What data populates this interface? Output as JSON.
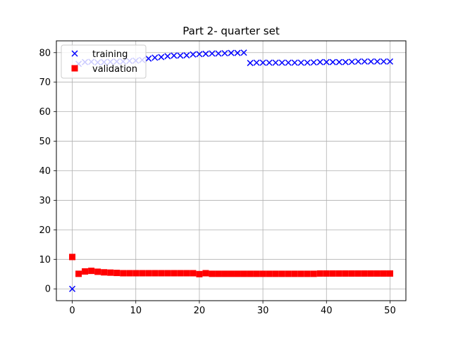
{
  "chart_data": {
    "type": "scatter",
    "title": "Part 2- quarter set",
    "xlabel": "",
    "ylabel": "",
    "xlim": [
      -2.5,
      52.5
    ],
    "ylim": [
      -4,
      84
    ],
    "grid": true,
    "legend_position": "top-left",
    "x_ticks": [
      0,
      10,
      20,
      30,
      40,
      50
    ],
    "y_ticks": [
      0,
      10,
      20,
      30,
      40,
      50,
      60,
      70,
      80
    ],
    "series": [
      {
        "name": "training",
        "marker": "x",
        "color": "#0000ff",
        "x": [
          0,
          1,
          2,
          3,
          4,
          5,
          6,
          7,
          8,
          9,
          10,
          11,
          12,
          13,
          14,
          15,
          16,
          17,
          18,
          19,
          20,
          21,
          22,
          23,
          24,
          25,
          26,
          27,
          28,
          29,
          30,
          31,
          32,
          33,
          34,
          35,
          36,
          37,
          38,
          39,
          40,
          41,
          42,
          43,
          44,
          45,
          46,
          47,
          48,
          49,
          50
        ],
        "values": [
          0,
          76.2,
          76.8,
          76.9,
          76.7,
          76.8,
          76.9,
          77.0,
          77.0,
          77.2,
          77.3,
          77.5,
          78.0,
          78.3,
          78.5,
          78.8,
          79.0,
          79.0,
          79.1,
          79.4,
          79.5,
          79.6,
          79.7,
          79.7,
          79.8,
          79.9,
          79.9,
          80.0,
          76.5,
          76.6,
          76.6,
          76.6,
          76.6,
          76.6,
          76.6,
          76.6,
          76.6,
          76.6,
          76.7,
          76.8,
          76.8,
          76.8,
          76.8,
          76.8,
          76.9,
          77.0,
          77.0,
          77.0,
          77.0,
          77.0,
          77.0
        ]
      },
      {
        "name": "validation",
        "marker": "square",
        "color": "#ff0000",
        "x": [
          0,
          1,
          2,
          3,
          4,
          5,
          6,
          7,
          8,
          9,
          10,
          11,
          12,
          13,
          14,
          15,
          16,
          17,
          18,
          19,
          20,
          21,
          22,
          23,
          24,
          25,
          26,
          27,
          28,
          29,
          30,
          31,
          32,
          33,
          34,
          35,
          36,
          37,
          38,
          39,
          40,
          41,
          42,
          43,
          44,
          45,
          46,
          47,
          48,
          49,
          50
        ],
        "values": [
          10.8,
          5.1,
          5.9,
          6.1,
          5.8,
          5.6,
          5.5,
          5.4,
          5.3,
          5.3,
          5.3,
          5.3,
          5.3,
          5.3,
          5.3,
          5.3,
          5.3,
          5.3,
          5.3,
          5.3,
          5.0,
          5.3,
          5.1,
          5.1,
          5.1,
          5.1,
          5.1,
          5.1,
          5.1,
          5.1,
          5.1,
          5.1,
          5.1,
          5.1,
          5.1,
          5.1,
          5.1,
          5.1,
          5.1,
          5.2,
          5.2,
          5.2,
          5.2,
          5.2,
          5.2,
          5.2,
          5.2,
          5.2,
          5.2,
          5.2,
          5.2
        ]
      }
    ]
  }
}
